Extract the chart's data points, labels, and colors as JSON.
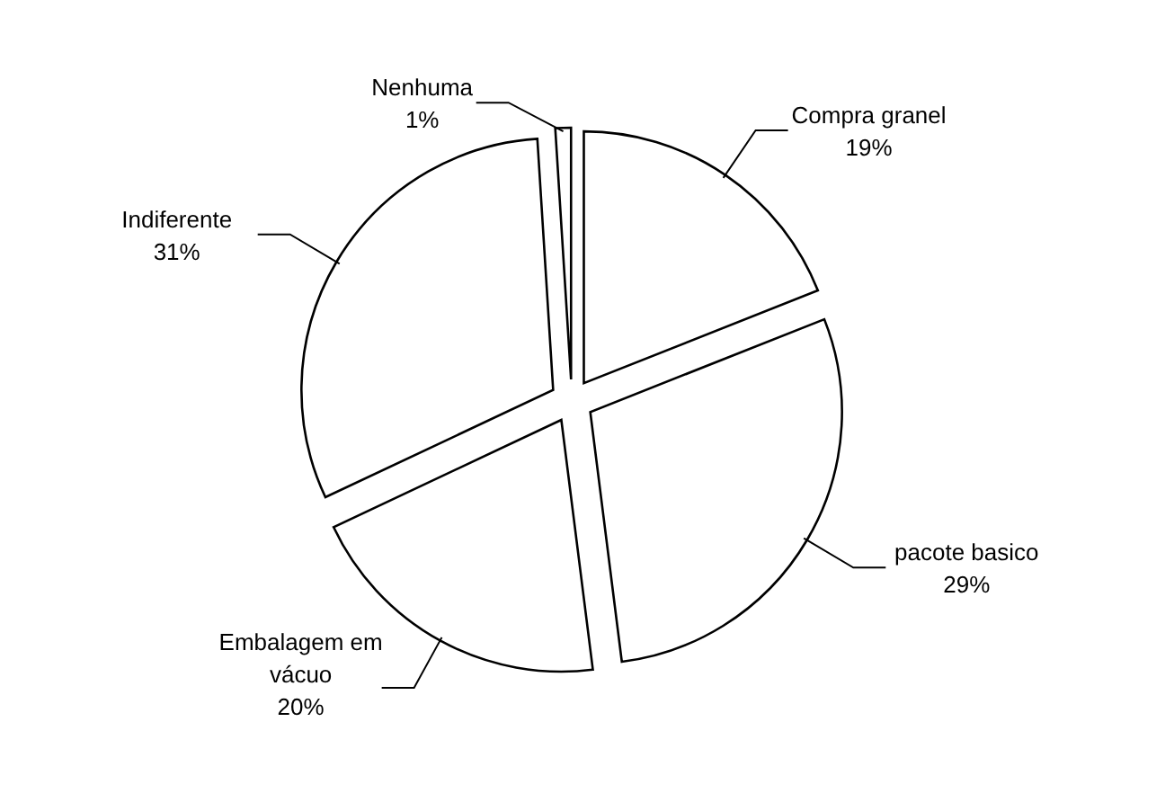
{
  "chart_data": {
    "type": "pie",
    "categories": [
      "Compra granel",
      "pacote basico",
      "Embalagem em vácuo",
      "Indiferente",
      "Nenhuma"
    ],
    "values": [
      19,
      29,
      20,
      31,
      1
    ],
    "colors": [
      "#ffffff",
      "#ffffff",
      "#ffffff",
      "#ffffff",
      "#ffffff"
    ],
    "value_labels": [
      "19%",
      "29%",
      "20%",
      "31%",
      "1%"
    ]
  }
}
